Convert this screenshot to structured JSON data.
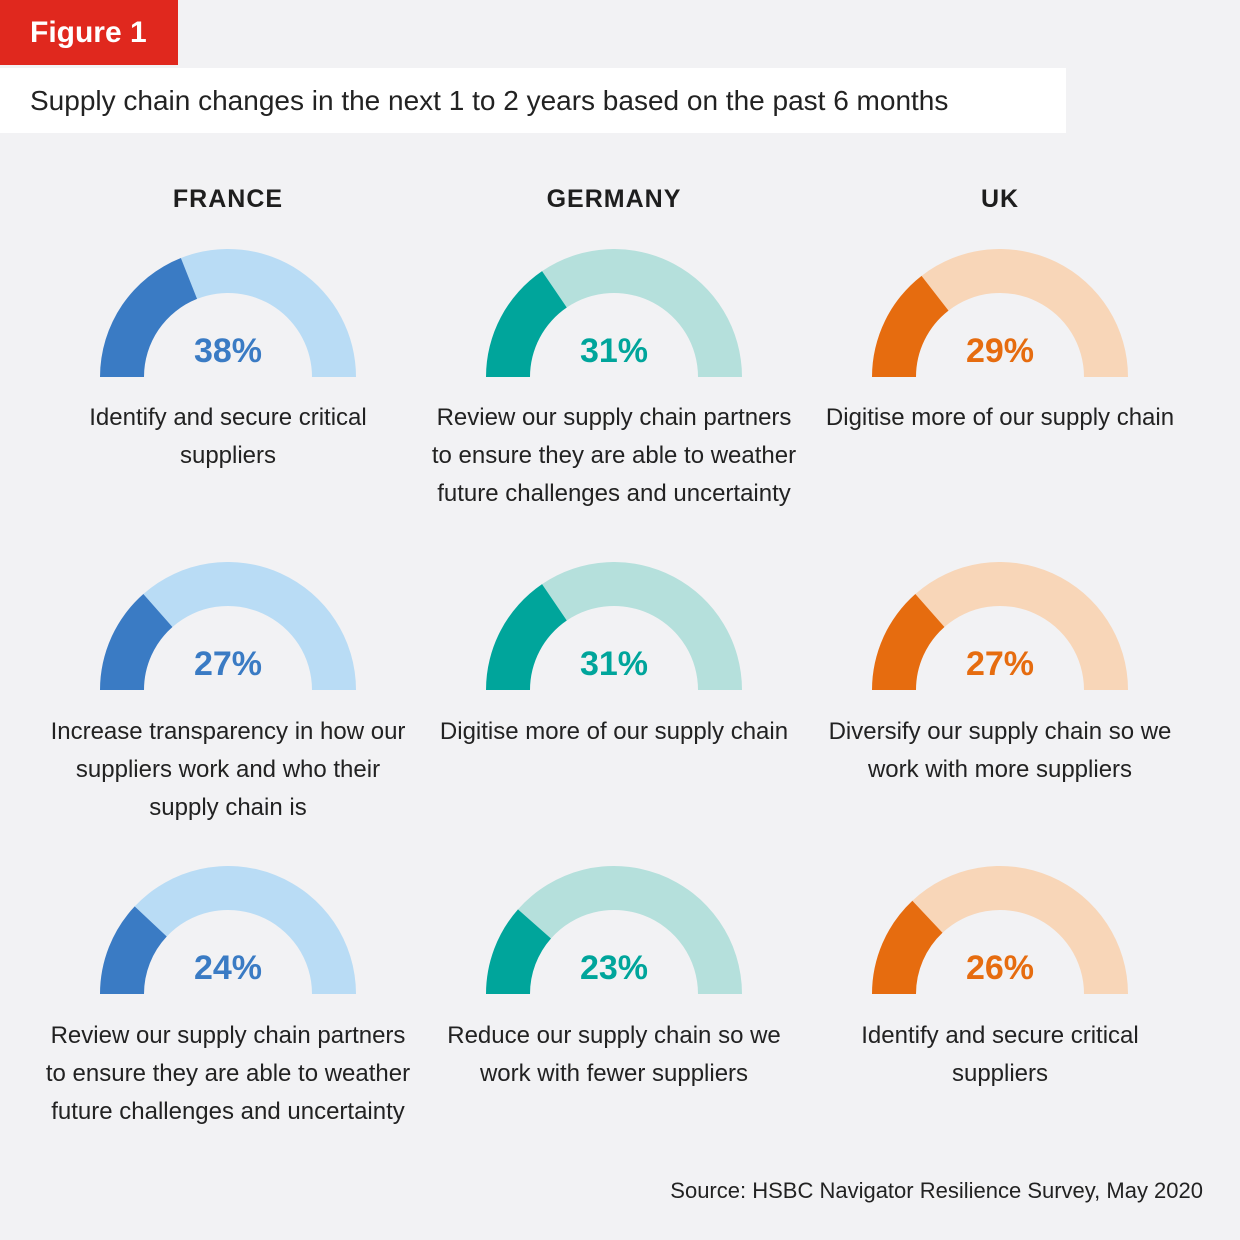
{
  "figure_label": "Figure 1",
  "chart_data": {
    "type": "gauge",
    "title": "Supply chain changes in the next 1 to 2 years based on the past 6 months",
    "source": "Source: HSBC Navigator Resilience Survey, May 2020",
    "columns": [
      {
        "country": "FRANCE",
        "color_dark": "#3a7bc4",
        "color_light": "#b9dcf5",
        "items": [
          {
            "value": 38,
            "label": "38%",
            "text": "Identify and secure critical suppliers"
          },
          {
            "value": 27,
            "label": "27%",
            "text": "Increase transparency in how our suppliers work and who their supply chain is"
          },
          {
            "value": 24,
            "label": "24%",
            "text": "Review our supply chain partners to ensure they are able to weather future challenges and uncertainty"
          }
        ]
      },
      {
        "country": "GERMANY",
        "color_dark": "#00a59b",
        "color_light": "#b5e0dc",
        "items": [
          {
            "value": 31,
            "label": "31%",
            "text": "Review our supply chain partners to ensure they are able to weather future challenges and uncertainty"
          },
          {
            "value": 31,
            "label": "31%",
            "text": "Digitise more of our supply chain"
          },
          {
            "value": 23,
            "label": "23%",
            "text": "Reduce our supply chain so we work with fewer suppliers"
          }
        ]
      },
      {
        "country": "UK",
        "color_dark": "#e66c0f",
        "color_light": "#f8d6b8",
        "items": [
          {
            "value": 29,
            "label": "29%",
            "text": "Digitise more of our supply chain"
          },
          {
            "value": 27,
            "label": "27%",
            "text": "Diversify our supply chain so we work with more suppliers"
          },
          {
            "value": 26,
            "label": "26%",
            "text": "Identify and secure critical suppliers"
          }
        ]
      }
    ]
  }
}
